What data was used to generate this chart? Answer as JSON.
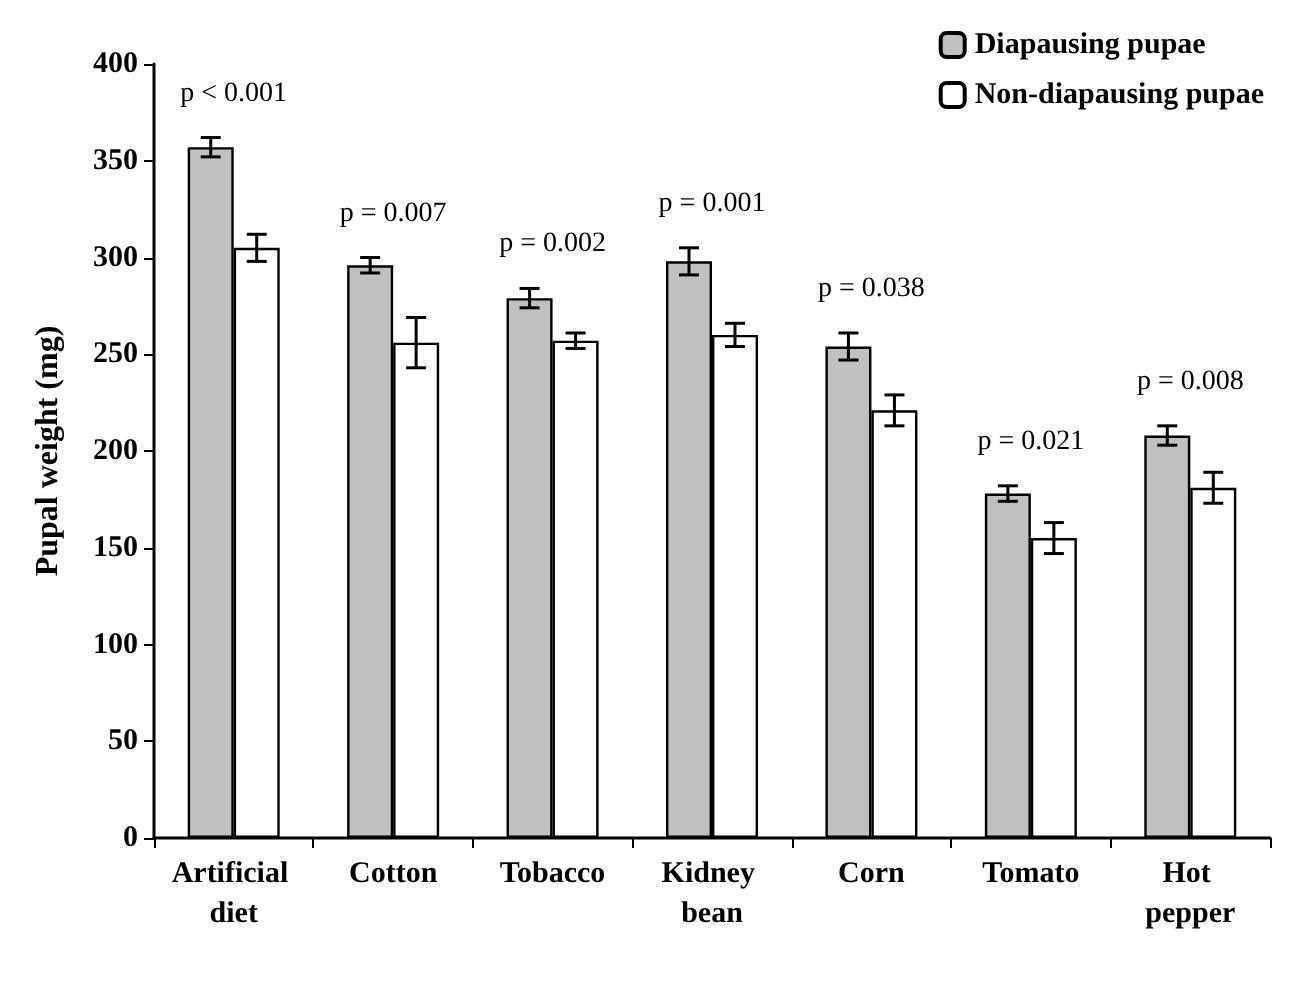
{
  "chart_data": {
    "type": "bar",
    "ylabel": "Pupal weight (mg)",
    "categories": [
      "Artificial diet",
      "Cotton",
      "Tobacco",
      "Kidney bean",
      "Corn",
      "Tomato",
      "Hot pepper"
    ],
    "series": [
      {
        "name": "Diapausing pupae",
        "color": "#c0c0c0",
        "values": [
          357,
          296,
          279,
          298,
          254,
          178,
          208
        ],
        "errors": [
          5,
          4,
          5,
          7,
          7,
          4,
          5
        ]
      },
      {
        "name": "Non-diapausing pupae",
        "color": "#ffffff",
        "values": [
          305,
          256,
          257,
          260,
          221,
          155,
          181
        ],
        "errors": [
          7,
          13,
          4,
          6,
          8,
          8,
          8
        ]
      }
    ],
    "ylim": [
      0,
      400
    ],
    "yticks": [
      0,
      50,
      100,
      150,
      200,
      250,
      300,
      350,
      400
    ],
    "grid": false,
    "legend": "top right",
    "annotations": [
      "p < 0.001",
      "p = 0.007",
      "p = 0.002",
      "p = 0.001",
      "p = 0.038",
      "p = 0.021",
      "p = 0.008"
    ]
  }
}
